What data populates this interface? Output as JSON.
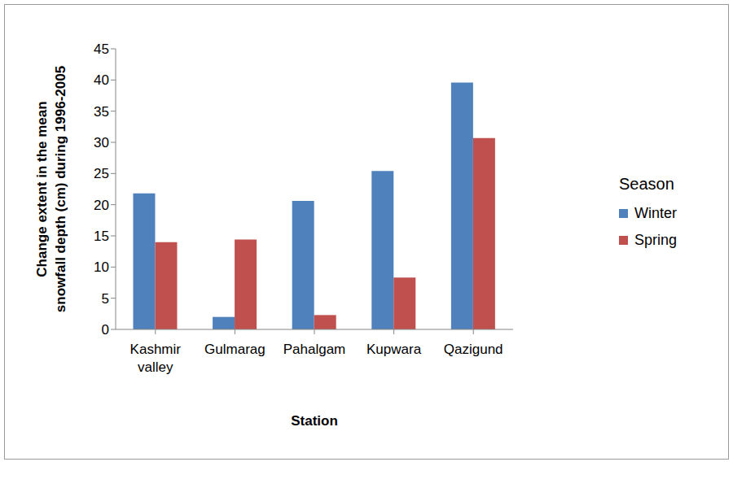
{
  "chart_data": {
    "type": "bar",
    "x_label": "Station",
    "y_label": "Change extent in the mean snowfall depth (cm) during 1996-2005",
    "legend_title": "Season",
    "categories": [
      "Kashmir valley",
      "Gulmarag",
      "Pahalgam",
      "Kupwara",
      "Qazigund"
    ],
    "series": [
      {
        "name": "Winter",
        "color": "#4f81bd",
        "values": [
          21.8,
          2,
          20.6,
          25.4,
          39.6
        ]
      },
      {
        "name": "Spring",
        "color": "#c0504d",
        "values": [
          14,
          14.4,
          2.3,
          8.3,
          30.7
        ]
      }
    ],
    "ylim": [
      0,
      45
    ],
    "yticks": [
      0,
      5,
      10,
      15,
      20,
      25,
      30,
      35,
      40,
      45
    ],
    "grid": false,
    "legend": "right"
  }
}
